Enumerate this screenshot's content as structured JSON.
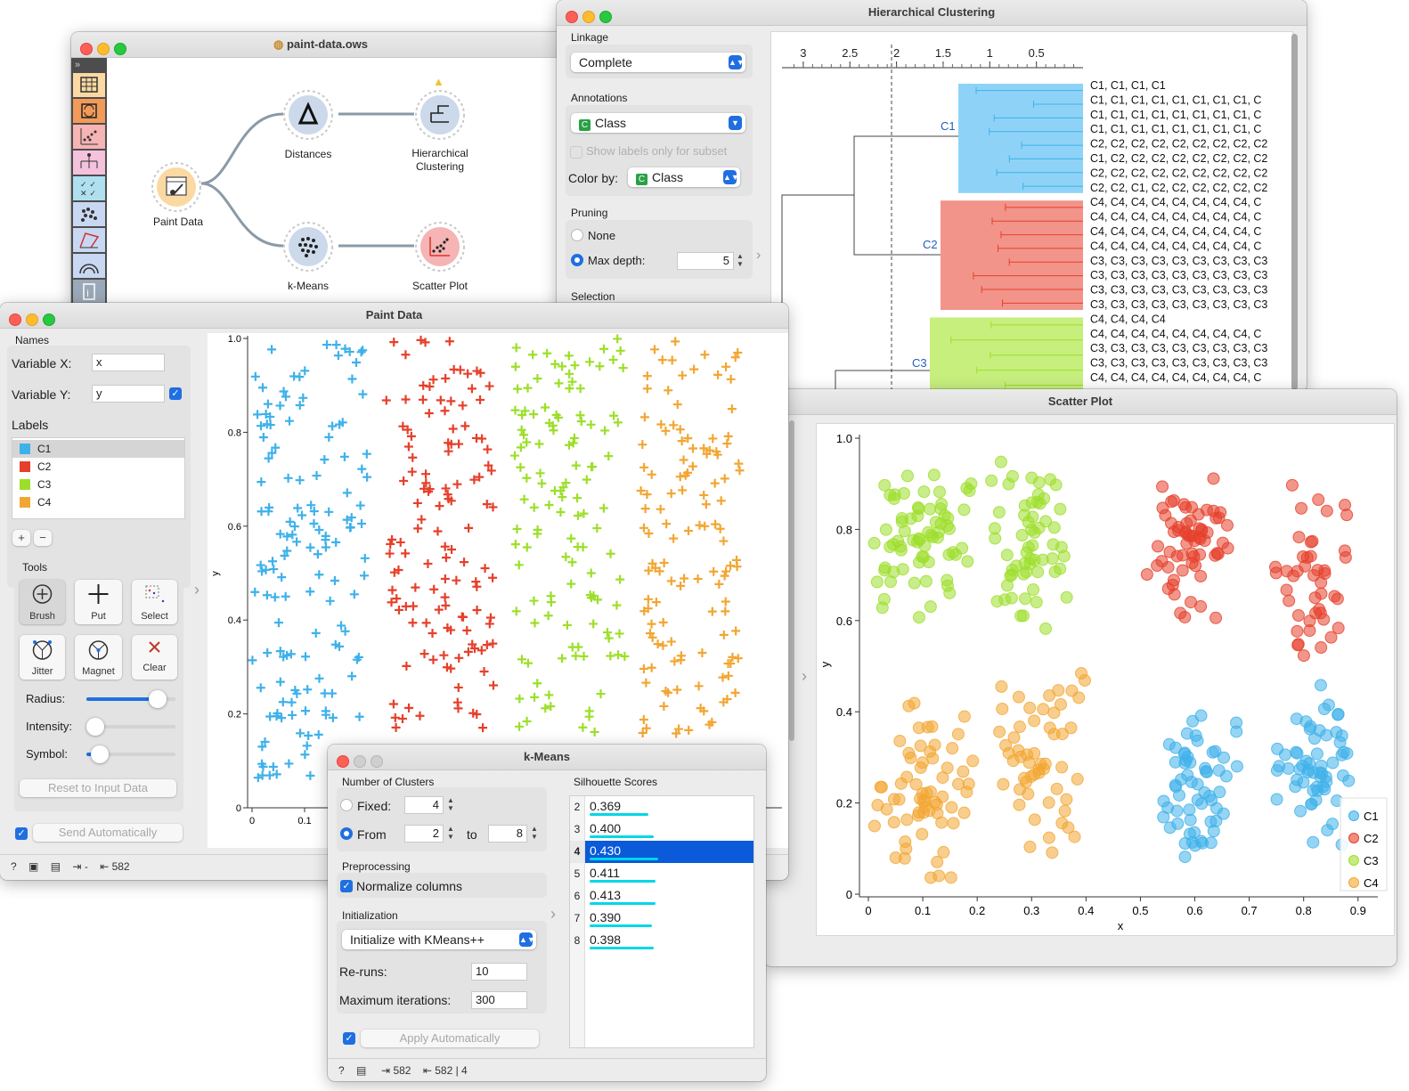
{
  "canvas": {
    "title": "paint-data.ows",
    "widgets": [
      {
        "name": "Paint Data",
        "icon": "paint-data-icon"
      },
      {
        "name": "Distances",
        "icon": "distances-icon"
      },
      {
        "name": "Hierarchical Clustering",
        "line1": "Hierarchical",
        "line2": "Clustering",
        "icon": "dendrogram-icon"
      },
      {
        "name": "k-Means",
        "icon": "kmeans-icon"
      },
      {
        "name": "Scatter Plot",
        "icon": "scatter-plot-icon"
      }
    ],
    "toolbox_collapse": "»"
  },
  "hierarchical": {
    "title": "Hierarchical Clustering",
    "linkage_label": "Linkage",
    "linkage_value": "Complete",
    "annotations_label": "Annotations",
    "annotation_value": "Class",
    "show_labels_subset": "Show labels only for subset",
    "color_by_label": "Color by:",
    "color_by_value": "Class",
    "pruning_label": "Pruning",
    "pruning_none": "None",
    "pruning_max_depth": "Max depth:",
    "max_depth_value": "5",
    "selection_label": "Selection",
    "axis_ticks": [
      "3",
      "2.5",
      "2",
      "1.5",
      "1",
      "0.5"
    ],
    "cluster_labels": [
      "C1",
      "C2",
      "C3"
    ],
    "leaf_labels": [
      "C1, C1, C1, C1",
      "C1, C1, C1, C1, C1, C1, C1, C1, C",
      "C1, C1, C1, C1, C1, C1, C1, C1, C",
      "C1, C1, C1, C1, C1, C1, C1, C1, C",
      "C2, C2, C2, C2, C2, C2, C2, C2, C2",
      "C1, C2, C2, C2, C2, C2, C2, C2, C2",
      "C2, C2, C2, C2, C2, C2, C2, C2, C2",
      "C2, C2, C1, C2, C2, C2, C2, C2, C2",
      "C4, C4, C4, C4, C4, C4, C4, C4, C",
      "C4, C4, C4, C4, C4, C4, C4, C4, C",
      "C4, C4, C4, C4, C4, C4, C4, C4, C",
      "C4, C4, C4, C4, C4, C4, C4, C4, C",
      "C3, C3, C3, C3, C3, C3, C3, C3, C3",
      "C3, C3, C3, C3, C3, C3, C3, C3, C3",
      "C3, C3, C3, C3, C3, C3, C3, C3, C3",
      "C3, C3, C3, C3, C3, C3, C3, C3, C3",
      "C4, C4, C4, C4",
      "C4, C4, C4, C4, C4, C4, C4, C4, C",
      "C3, C3, C3, C3, C3, C3, C3, C3, C3",
      "C3, C3, C3, C3, C3, C3, C3, C3, C3",
      "C4, C4, C4, C4, C4, C4, C4, C4, C"
    ]
  },
  "paint": {
    "title": "Paint Data",
    "names_label": "Names",
    "var_x_label": "Variable X:",
    "var_x_value": "x",
    "var_y_label": "Variable Y:",
    "var_y_value": "y",
    "labels_label": "Labels",
    "labels": [
      {
        "name": "C1",
        "color": "#3fb1ea"
      },
      {
        "name": "C2",
        "color": "#e6402b"
      },
      {
        "name": "C3",
        "color": "#9cdf2a"
      },
      {
        "name": "C4",
        "color": "#f2a632"
      }
    ],
    "plus_button": "+",
    "minus_button": "−",
    "tools_label": "Tools",
    "tools": [
      "Brush",
      "Put",
      "Select",
      "Jitter",
      "Magnet",
      "Clear"
    ],
    "radius_label": "Radius:",
    "radius_value": 0.8,
    "intensity_label": "Intensity:",
    "intensity_value": 0.1,
    "symbol_label": "Symbol:",
    "symbol_value": 0.15,
    "reset_button": "Reset to Input Data",
    "send_auto": "Send Automatically",
    "status_count": "582",
    "status_input": "-",
    "ylabel": "y",
    "y_ticks": [
      "0",
      "0.2",
      "0.4",
      "0.6",
      "0.8",
      "1.0"
    ],
    "x_ticks": [
      "0",
      "0.1"
    ]
  },
  "kmeans": {
    "title": "k-Means",
    "clusters_label": "Number of Clusters",
    "fixed_label": "Fixed:",
    "fixed_value": "4",
    "from_label": "From",
    "from_value": "2",
    "to_label": "to",
    "to_value": "8",
    "preprocessing_label": "Preprocessing",
    "normalize_label": "Normalize columns",
    "init_label": "Initialization",
    "init_value": "Initialize with KMeans++",
    "reruns_label": "Re-runs:",
    "reruns_value": "10",
    "maxiter_label": "Maximum iterations:",
    "maxiter_value": "300",
    "apply_auto": "Apply Automatically",
    "silhouette_label": "Silhouette Scores",
    "scores": [
      {
        "k": "2",
        "score": "0.369"
      },
      {
        "k": "3",
        "score": "0.400"
      },
      {
        "k": "4",
        "score": "0.430"
      },
      {
        "k": "5",
        "score": "0.411"
      },
      {
        "k": "6",
        "score": "0.413"
      },
      {
        "k": "7",
        "score": "0.390"
      },
      {
        "k": "8",
        "score": "0.398"
      }
    ],
    "selected_k": "4",
    "status_in": "582",
    "status_out": "582 | 4"
  },
  "scatter": {
    "title": "Scatter Plot",
    "xlabel": "x",
    "ylabel": "y",
    "x_ticks": [
      "0",
      "0.1",
      "0.2",
      "0.3",
      "0.4",
      "0.5",
      "0.6",
      "0.7",
      "0.8",
      "0.9"
    ],
    "y_ticks": [
      "0",
      "0.2",
      "0.4",
      "0.6",
      "0.8",
      "1.0"
    ],
    "legend": [
      {
        "name": "C1",
        "color": "#3fb1ea"
      },
      {
        "name": "C2",
        "color": "#e6402b"
      },
      {
        "name": "C3",
        "color": "#9cdf2a"
      },
      {
        "name": "C4",
        "color": "#f2a632"
      }
    ]
  }
}
